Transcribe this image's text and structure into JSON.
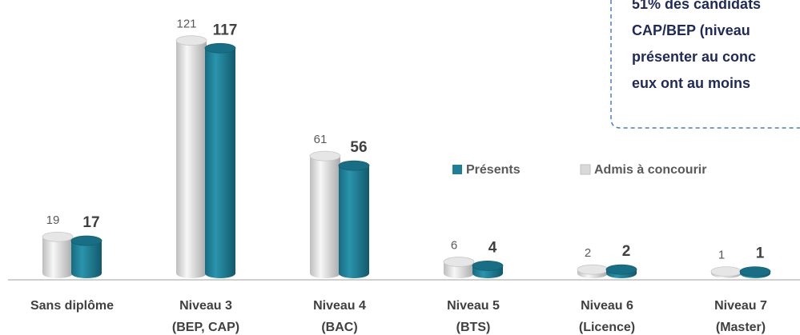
{
  "chart_data": {
    "type": "bar3d",
    "categories": [
      [
        "Sans diplôme"
      ],
      [
        "Niveau 3",
        "(BEP, CAP)"
      ],
      [
        "Niveau 4",
        "(BAC)"
      ],
      [
        "Niveau 5",
        "(BTS)"
      ],
      [
        "Niveau 6",
        "(Licence)"
      ],
      [
        "Niveau 7",
        "(Master)"
      ]
    ],
    "series": [
      {
        "name": "Admis à concourir",
        "color": "#d9d9d9",
        "values": [
          19,
          121,
          61,
          6,
          2,
          1
        ]
      },
      {
        "name": "Présents",
        "color": "#1f7f96",
        "values": [
          17,
          117,
          56,
          4,
          2,
          1
        ]
      }
    ],
    "ylim": [
      0,
      130
    ],
    "annotation": [
      "51% des candidats",
      "CAP/BEP (niveau",
      "présenter au conc",
      "eux ont au moins"
    ]
  }
}
